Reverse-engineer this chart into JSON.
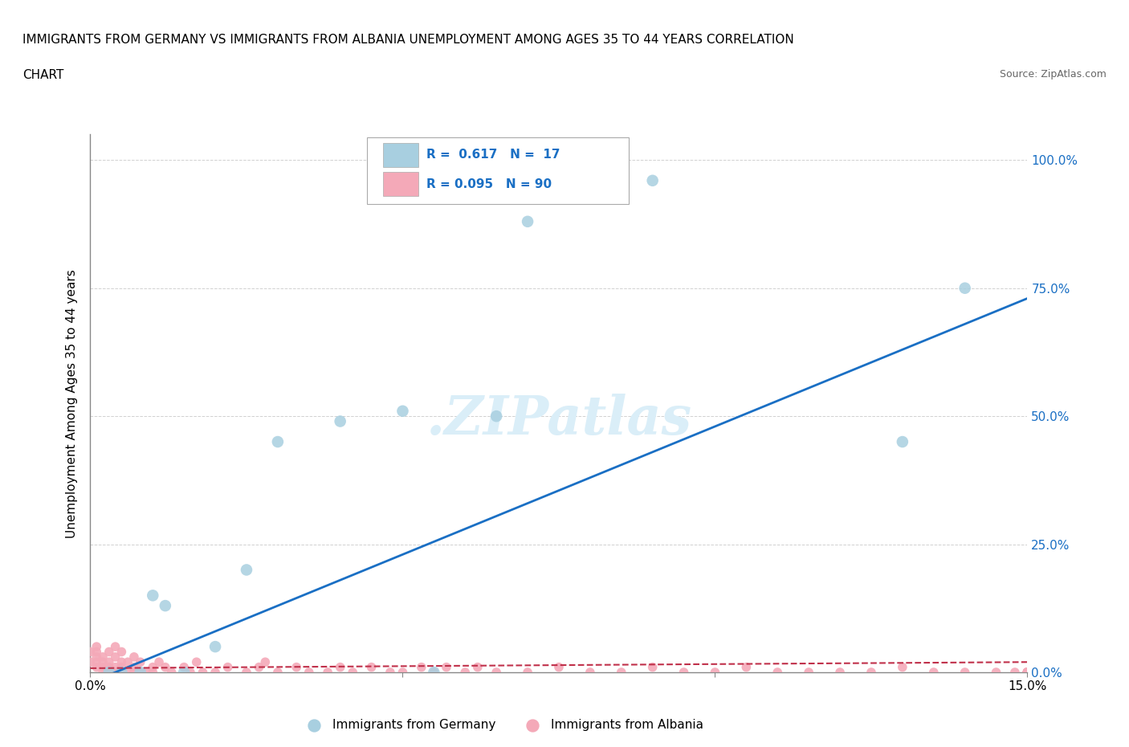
{
  "title_line1": "IMMIGRANTS FROM GERMANY VS IMMIGRANTS FROM ALBANIA UNEMPLOYMENT AMONG AGES 35 TO 44 YEARS CORRELATION",
  "title_line2": "CHART",
  "source": "Source: ZipAtlas.com",
  "ylabel": "Unemployment Among Ages 35 to 44 years",
  "xlim": [
    0.0,
    0.15
  ],
  "ylim": [
    0.0,
    1.05
  ],
  "y_tick_labels": [
    "0.0%",
    "25.0%",
    "50.0%",
    "75.0%",
    "100.0%"
  ],
  "y_ticks": [
    0.0,
    0.25,
    0.5,
    0.75,
    1.0
  ],
  "germany_color": "#a8cfe0",
  "albania_color": "#f4a9b8",
  "germany_R": 0.617,
  "germany_N": 17,
  "albania_R": 0.095,
  "albania_N": 90,
  "trendline_germany_color": "#1a6fc4",
  "trendline_albania_color": "#c0304a",
  "watermark": ".ZIPatlas",
  "watermark_color": "#daeef8",
  "legend_text_color": "#1a6fc4",
  "germany_x": [
    0.003,
    0.005,
    0.008,
    0.01,
    0.012,
    0.015,
    0.02,
    0.025,
    0.03,
    0.04,
    0.05,
    0.055,
    0.065,
    0.07,
    0.09,
    0.13,
    0.14
  ],
  "germany_y": [
    0.0,
    0.0,
    0.0,
    0.15,
    0.13,
    0.0,
    0.05,
    0.2,
    0.45,
    0.49,
    0.51,
    0.0,
    0.5,
    0.88,
    0.96,
    0.45,
    0.75
  ],
  "albania_x": [
    0.0,
    0.0,
    0.001,
    0.001,
    0.001,
    0.001,
    0.001,
    0.002,
    0.002,
    0.002,
    0.002,
    0.003,
    0.003,
    0.003,
    0.003,
    0.004,
    0.004,
    0.004,
    0.004,
    0.005,
    0.005,
    0.005,
    0.005,
    0.006,
    0.006,
    0.007,
    0.007,
    0.007,
    0.008,
    0.008,
    0.009,
    0.01,
    0.01,
    0.011,
    0.012,
    0.013,
    0.015,
    0.016,
    0.017,
    0.018,
    0.02,
    0.022,
    0.025,
    0.027,
    0.028,
    0.03,
    0.033,
    0.035,
    0.038,
    0.04,
    0.042,
    0.045,
    0.048,
    0.05,
    0.053,
    0.055,
    0.057,
    0.06,
    0.062,
    0.065,
    0.07,
    0.075,
    0.08,
    0.085,
    0.09,
    0.095,
    0.1,
    0.105,
    0.11,
    0.115,
    0.12,
    0.125,
    0.13,
    0.135,
    0.14,
    0.145,
    0.148,
    0.15,
    0.15,
    0.15,
    0.15,
    0.15,
    0.15,
    0.15,
    0.15,
    0.15,
    0.15,
    0.15,
    0.15,
    0.15
  ],
  "albania_y": [
    0.02,
    0.04,
    0.01,
    0.02,
    0.03,
    0.04,
    0.05,
    0.0,
    0.01,
    0.02,
    0.03,
    0.0,
    0.01,
    0.02,
    0.04,
    0.0,
    0.01,
    0.03,
    0.05,
    0.0,
    0.01,
    0.02,
    0.04,
    0.0,
    0.02,
    0.0,
    0.01,
    0.03,
    0.0,
    0.02,
    0.0,
    0.0,
    0.01,
    0.02,
    0.01,
    0.0,
    0.01,
    0.0,
    0.02,
    0.0,
    0.0,
    0.01,
    0.0,
    0.01,
    0.02,
    0.0,
    0.01,
    0.0,
    0.0,
    0.01,
    0.0,
    0.01,
    0.0,
    0.0,
    0.01,
    0.0,
    0.01,
    0.0,
    0.01,
    0.0,
    0.0,
    0.01,
    0.0,
    0.0,
    0.01,
    0.0,
    0.0,
    0.01,
    0.0,
    0.0,
    0.0,
    0.0,
    0.01,
    0.0,
    0.0,
    0.0,
    0.0,
    0.0,
    0.0,
    0.0,
    0.0,
    0.0,
    0.0,
    0.0,
    0.0,
    0.0,
    0.0,
    0.0,
    0.0,
    0.0
  ]
}
